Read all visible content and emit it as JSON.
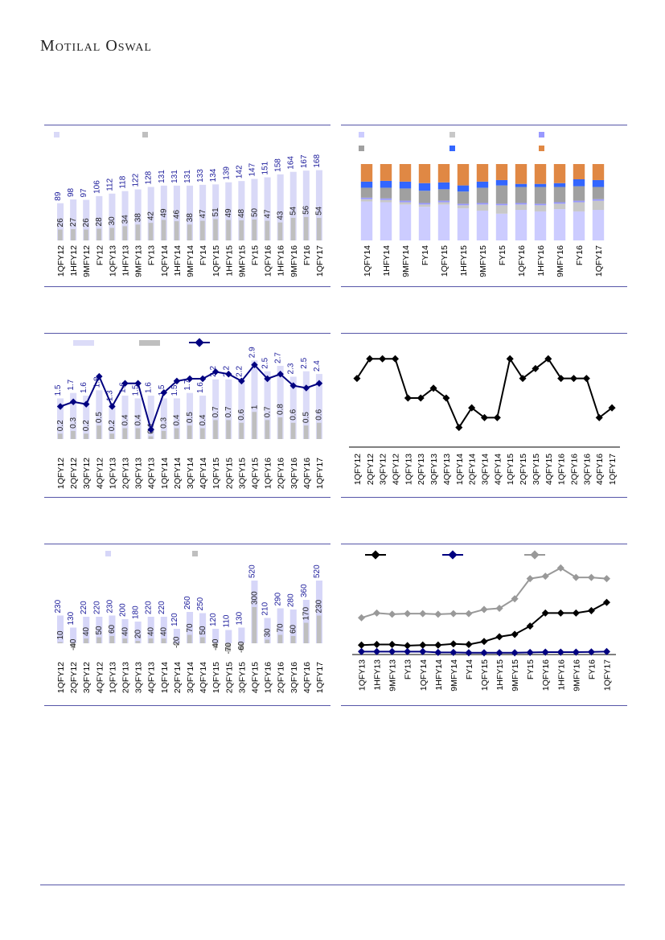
{
  "brand": "Motilal Oswal",
  "charts": [
    {
      "id": "c1",
      "chart_data": {
        "type": "bar",
        "categories": [
          "1QFY12",
          "1HFY12",
          "9MFY12",
          "FY12",
          "1QFY13",
          "1HFY13",
          "9MFY13",
          "FY13",
          "1QFY14",
          "1HFY14",
          "9MFY14",
          "FY14",
          "1QFY15",
          "1HFY15",
          "9MFY15",
          "FY15",
          "1QFY16",
          "1HFY16",
          "9MFY16",
          "FY16",
          "1QFY17"
        ],
        "series": [
          {
            "color": "#d9d9f7",
            "values": [
              89,
              98,
              97,
              106,
              112,
              118,
              122,
              128,
              131,
              131,
              131,
              133,
              134,
              139,
              142,
              147,
              151,
              158,
              164,
              167,
              168
            ]
          },
          {
            "color": "#bfbfbf",
            "values": [
              26,
              27,
              26,
              28,
              30,
              34,
              38,
              42,
              49,
              46,
              38,
              47,
              51,
              49,
              48,
              50,
              47,
              43,
              54,
              56,
              54
            ]
          }
        ],
        "ylim": [
          0,
          200
        ],
        "legend": [
          {
            "color": "#d9d9f7",
            "label": ""
          },
          {
            "color": "#bfbfbf",
            "label": ""
          }
        ]
      }
    },
    {
      "id": "c2",
      "chart_data": {
        "type": "bar",
        "stacked": true,
        "categories": [
          "1QFY14",
          "1HFY14",
          "9MFY14",
          "FY14",
          "1QFY15",
          "1HFY15",
          "9MFY15",
          "FY15",
          "1QFY16",
          "1HFY16",
          "9MFY16",
          "FY16",
          "1QFY17"
        ],
        "series": [
          {
            "color": "#ccccff",
            "values": [
              51,
              50,
              47,
              44,
              47,
              42,
              39,
              35,
              40,
              38,
              41,
              38,
              40
            ]
          },
          {
            "color": "#c8c8c8",
            "values": [
              3,
              3,
              3,
              3,
              3,
              4,
              8,
              11,
              7,
              8,
              7,
              12,
              12
            ]
          },
          {
            "color": "#9999ff",
            "values": [
              2,
              2,
              2,
              2,
              2,
              2,
              2,
              2,
              2,
              2,
              2,
              2,
              2
            ]
          },
          {
            "color": "#a0a0a0",
            "values": [
              13,
              14,
              16,
              16,
              15,
              16,
              20,
              24,
              21,
              22,
              20,
              19,
              16
            ]
          },
          {
            "color": "#3366ff",
            "values": [
              8,
              9,
              9,
              10,
              9,
              8,
              8,
              7,
              4,
              4,
              5,
              9,
              9
            ]
          },
          {
            "color": "#e08844",
            "values": [
              23,
              22,
              23,
              25,
              24,
              28,
              23,
              21,
              26,
              26,
              25,
              20,
              21
            ]
          }
        ],
        "ylim": [
          0,
          100
        ],
        "legend": [
          {
            "color": "#ccccff",
            "label": ""
          },
          {
            "color": "#c8c8c8",
            "label": ""
          },
          {
            "color": "#9999ff",
            "label": ""
          },
          {
            "color": "#a0a0a0",
            "label": ""
          },
          {
            "color": "#3366ff",
            "label": ""
          },
          {
            "color": "#e08844",
            "label": ""
          }
        ]
      }
    },
    {
      "id": "c3",
      "chart_data": {
        "type": "bar",
        "categories": [
          "1QFY12",
          "2QFY12",
          "3QFY12",
          "4QFY12",
          "1QFY13",
          "2QFY13",
          "3QFY13",
          "4QFY13",
          "1QFY14",
          "2QFY14",
          "3QFY14",
          "4QFY14",
          "1QFY15",
          "2QFY15",
          "3QFY15",
          "4QFY15",
          "1QFY16",
          "2QFY16",
          "3QFY16",
          "4QFY16",
          "1QFY17"
        ],
        "series": [
          {
            "color": "#dcdcf8",
            "values": [
              1.5,
              1.7,
              1.6,
              1.8,
              1.3,
              1.6,
              1.5,
              1.6,
              1.5,
              1.5,
              1.7,
              1.6,
              2.2,
              2.2,
              2.2,
              2.9,
              2.5,
              2.7,
              2.3,
              2.5,
              2.4
            ]
          },
          {
            "color": "#bfbfbf",
            "values": [
              0.2,
              0.3,
              0.2,
              0.5,
              0.2,
              0.4,
              0.4,
              0.1,
              0.3,
              0.4,
              0.5,
              0.4,
              0.7,
              0.7,
              0.6,
              1.0,
              0.7,
              0.8,
              0.6,
              0.5,
              0.6
            ]
          },
          {
            "color": "#000080",
            "line": true,
            "values": [
              12,
              14,
              13,
              25,
              12,
              22,
              22,
              2,
              18,
              23,
              24,
              24,
              27,
              26,
              23,
              30,
              24,
              26,
              21,
              20,
              22
            ]
          }
        ],
        "ylim": [
          0,
          3.5
        ],
        "legend": [
          {
            "color": "#dcdcf8",
            "label": ""
          },
          {
            "color": "#bfbfbf",
            "label": ""
          },
          {
            "color": "#000080",
            "label": ""
          }
        ]
      }
    },
    {
      "id": "c4",
      "chart_data": {
        "type": "line",
        "categories": [
          "1QFY12",
          "2QFY12",
          "3QFY12",
          "4QFY12",
          "1QFY13",
          "2QFY13",
          "3QFY13",
          "4QFY13",
          "1QFY14",
          "2QFY14",
          "3QFY14",
          "4QFY14",
          "1QFY15",
          "2QFY15",
          "3QFY15",
          "4QFY15",
          "1QFY16",
          "2QFY16",
          "3QFY16",
          "4QFY16",
          "1QFY17"
        ],
        "series": [
          {
            "color": "#000000",
            "values": [
              70,
              90,
              90,
              90,
              50,
              50,
              60,
              50,
              20,
              40,
              30,
              30,
              90,
              70,
              80,
              90,
              70,
              70,
              70,
              30,
              40
            ]
          }
        ],
        "ylim": [
          0,
          100
        ]
      }
    },
    {
      "id": "c5",
      "chart_data": {
        "type": "bar",
        "categories": [
          "1QFY12",
          "2QFY12",
          "3QFY12",
          "4QFY12",
          "1QFY13",
          "2QFY13",
          "3QFY13",
          "4QFY13",
          "1QFY14",
          "2QFY14",
          "3QFY14",
          "4QFY14",
          "1QFY15",
          "2QFY15",
          "3QFY15",
          "4QFY15",
          "1QFY16",
          "2QFY16",
          "3QFY16",
          "4QFY16",
          "1QFY17"
        ],
        "series": [
          {
            "color": "#d6d6f8",
            "values": [
              230,
              130,
              220,
              220,
              230,
              200,
              180,
              220,
              220,
              120,
              260,
              250,
              120,
              110,
              130,
              520,
              210,
              290,
              280,
              360,
              520
            ]
          },
          {
            "color": "#bfbfbf",
            "values": [
              10,
              -40,
              40,
              50,
              60,
              40,
              20,
              40,
              40,
              -20,
              70,
              50,
              -40,
              -70,
              -60,
              300,
              30,
              70,
              60,
              170,
              230
            ]
          }
        ],
        "ylim": [
          -100,
          560
        ],
        "legend": [
          {
            "color": "#d6d6f8",
            "label": ""
          },
          {
            "color": "#bfbfbf",
            "label": ""
          }
        ]
      }
    },
    {
      "id": "c6",
      "chart_data": {
        "type": "line",
        "categories": [
          "1QFY13",
          "1HFY13",
          "9MFY13",
          "FY13",
          "1QFY14",
          "1HFY14",
          "9MFY14",
          "FY14",
          "1QFY15",
          "1HFY15",
          "9MFY15",
          "FY15",
          "1QFY16",
          "1HFY16",
          "9MFY16",
          "FY16",
          "1QFY17"
        ],
        "series": [
          {
            "color": "#000000",
            "values": [
              8,
              8.5,
              8.5,
              7.5,
              8,
              8,
              9,
              8.5,
              11,
              15,
              17,
              24,
              35,
              35,
              35,
              37,
              44
            ]
          },
          {
            "color": "#000080",
            "values": [
              2.5,
              2.5,
              2.5,
              2.5,
              2.5,
              1.8,
              1.8,
              1.5,
              1.5,
              1.5,
              1.5,
              1.8,
              2,
              2,
              2,
              2.2,
              2.5
            ]
          },
          {
            "color": "#999999",
            "values": [
              31,
              35,
              34,
              34.5,
              34.5,
              34,
              34.5,
              34.5,
              38,
              39,
              47,
              64,
              66,
              73,
              65,
              65,
              64
            ]
          }
        ],
        "ylim": [
          0,
          80
        ],
        "legend": [
          {
            "color": "#000000",
            "label": ""
          },
          {
            "color": "#000080",
            "label": ""
          },
          {
            "color": "#999999",
            "label": ""
          }
        ]
      }
    }
  ]
}
